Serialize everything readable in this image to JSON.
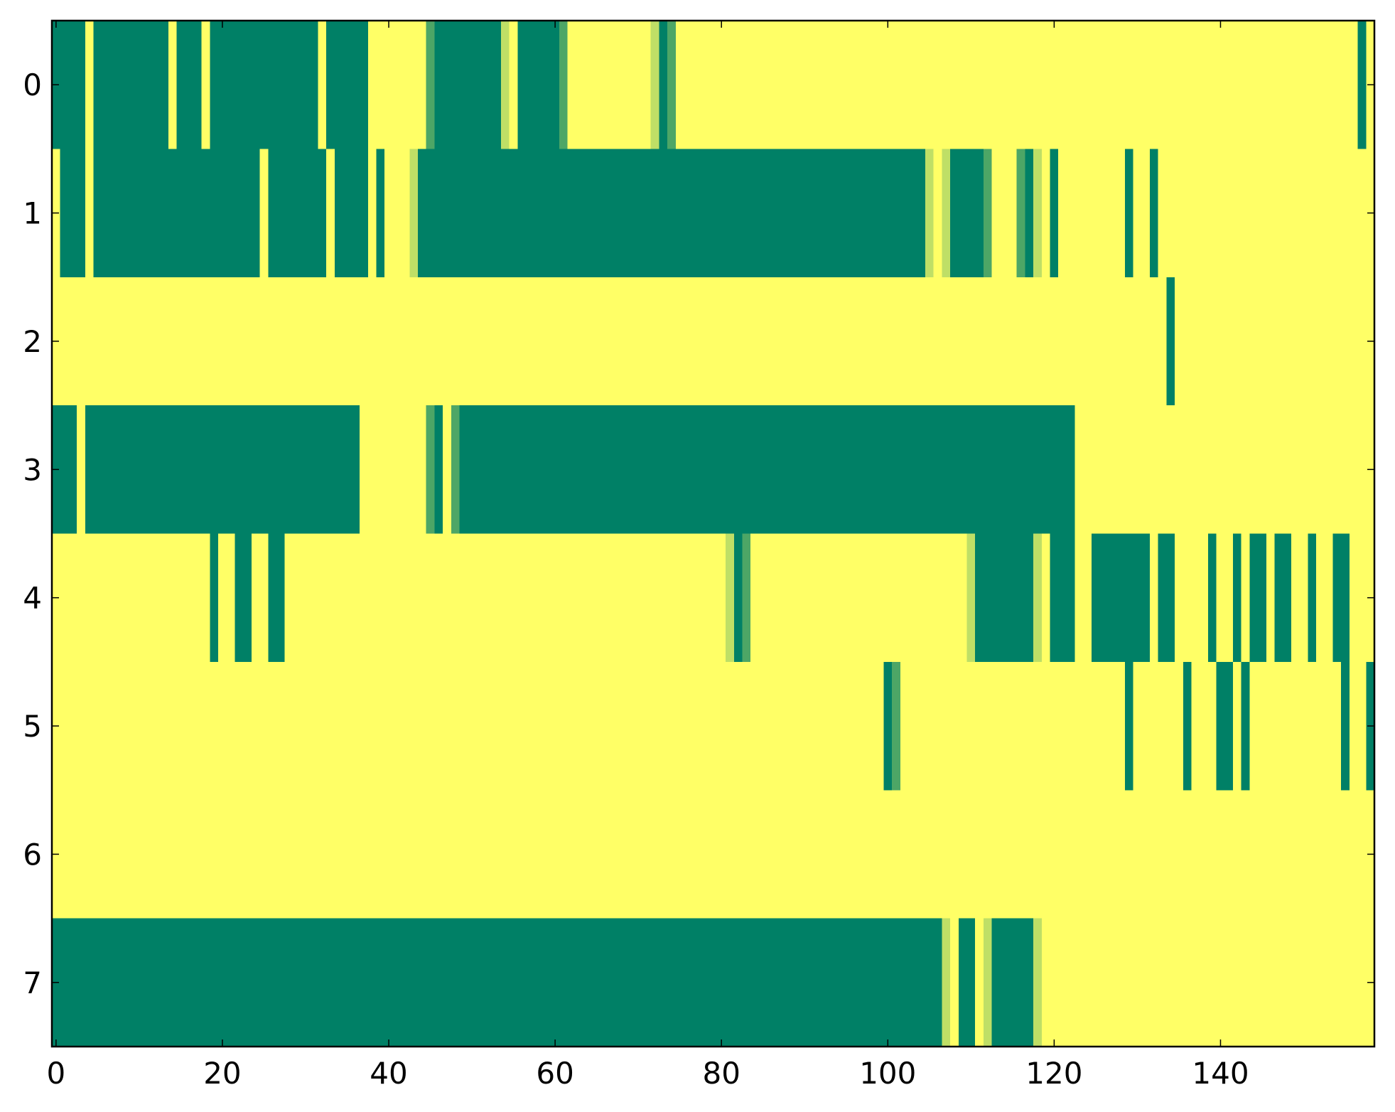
{
  "chart_data": {
    "type": "heatmap",
    "values": [
      [
        0,
        0,
        0,
        0,
        1,
        0,
        0,
        0,
        0,
        0,
        0,
        0,
        0,
        0,
        1,
        0,
        0,
        0,
        1,
        0,
        0,
        0,
        0,
        0,
        0,
        0,
        0,
        0,
        0,
        0,
        0,
        0,
        1,
        0,
        0,
        0,
        0,
        0,
        1,
        1,
        1,
        1,
        1,
        1,
        1,
        0.3,
        0,
        0,
        0,
        0,
        0,
        0,
        0,
        0,
        0.75,
        1,
        0,
        0,
        0,
        0,
        0,
        0.3,
        1,
        1,
        1,
        1,
        1,
        1,
        1,
        1,
        1,
        1,
        0.75,
        0,
        0.3,
        1,
        1,
        1,
        1,
        1,
        1,
        1,
        1,
        1,
        1,
        1,
        1,
        1,
        1,
        1,
        1,
        1,
        1,
        1,
        1,
        1,
        1,
        1,
        1,
        1,
        1,
        1,
        1,
        1,
        1,
        1,
        1,
        1,
        1,
        1,
        1,
        1,
        1,
        1,
        1,
        1,
        1,
        1,
        1,
        1,
        1,
        1,
        1,
        1,
        1,
        1,
        1,
        1,
        1,
        1,
        1,
        1,
        1,
        1,
        1,
        1,
        1,
        1,
        1,
        1,
        1,
        1,
        1,
        1,
        1,
        1,
        1,
        1,
        1,
        1,
        1,
        1,
        1,
        1,
        1,
        1,
        1,
        0,
        1
      ],
      [
        1,
        0,
        0,
        0,
        1,
        0,
        0,
        0,
        0,
        0,
        0,
        0,
        0,
        0,
        0,
        0,
        0,
        0,
        0,
        0,
        0,
        0,
        0,
        0,
        0,
        1,
        0,
        0,
        0,
        0,
        0,
        0,
        0,
        1,
        0,
        0,
        0,
        0,
        1,
        0,
        1,
        1,
        1,
        0.75,
        0,
        0,
        0,
        0,
        0,
        0,
        0,
        0,
        0,
        0,
        0,
        0,
        0,
        0,
        0,
        0,
        0,
        0,
        0,
        0,
        0,
        0,
        0,
        0,
        0,
        0,
        0,
        0,
        0,
        0,
        0,
        0,
        0,
        0,
        0,
        0,
        0,
        0,
        0,
        0,
        0,
        0,
        0,
        0,
        0,
        0,
        0,
        0,
        0,
        0,
        0,
        0,
        0,
        0,
        0,
        0,
        0,
        0,
        0,
        0,
        0,
        0.75,
        1,
        0.75,
        0,
        0,
        0,
        0,
        0.3,
        1,
        1,
        1,
        0.3,
        0,
        0.75,
        1,
        0,
        1,
        1,
        1,
        1,
        1,
        1,
        1,
        1,
        0,
        1,
        1,
        0,
        1,
        1,
        1,
        1,
        1,
        1,
        1,
        1,
        1,
        1,
        1,
        1,
        1,
        1,
        1,
        1,
        1,
        1,
        1,
        1,
        1,
        1,
        1,
        1,
        1,
        1
      ],
      [
        1,
        1,
        1,
        1,
        1,
        1,
        1,
        1,
        1,
        1,
        1,
        1,
        1,
        1,
        1,
        1,
        1,
        1,
        1,
        1,
        1,
        1,
        1,
        1,
        1,
        1,
        1,
        1,
        1,
        1,
        1,
        1,
        1,
        1,
        1,
        1,
        1,
        1,
        1,
        1,
        1,
        1,
        1,
        1,
        1,
        1,
        1,
        1,
        1,
        1,
        1,
        1,
        1,
        1,
        1,
        1,
        1,
        1,
        1,
        1,
        1,
        1,
        1,
        1,
        1,
        1,
        1,
        1,
        1,
        1,
        1,
        1,
        1,
        1,
        1,
        1,
        1,
        1,
        1,
        1,
        1,
        1,
        1,
        1,
        1,
        1,
        1,
        1,
        1,
        1,
        1,
        1,
        1,
        1,
        1,
        1,
        1,
        1,
        1,
        1,
        1,
        1,
        1,
        1,
        1,
        1,
        1,
        1,
        1,
        1,
        1,
        1,
        1,
        1,
        1,
        1,
        1,
        1,
        1,
        1,
        1,
        1,
        1,
        1,
        1,
        1,
        1,
        1,
        1,
        1,
        1,
        1,
        1,
        1,
        0,
        1,
        1,
        1,
        1,
        1,
        1,
        1,
        1,
        1,
        1,
        1,
        1,
        1,
        1,
        1,
        1,
        1,
        1,
        1,
        1,
        1,
        1,
        1,
        1
      ],
      [
        0,
        0,
        0,
        1,
        0,
        0,
        0,
        0,
        0,
        0,
        0,
        0,
        0,
        0,
        0,
        0,
        0,
        0,
        0,
        0,
        0,
        0,
        0,
        0,
        0,
        0,
        0,
        0,
        0,
        0,
        0,
        0,
        0,
        0,
        0,
        0,
        0,
        1,
        1,
        1,
        1,
        1,
        1,
        1,
        1,
        0.3,
        0,
        1,
        0.3,
        0,
        0,
        0,
        0,
        0,
        0,
        0,
        0,
        0,
        0,
        0,
        0,
        0,
        0,
        0,
        0,
        0,
        0,
        0,
        0,
        0,
        0,
        0,
        0,
        0,
        0,
        0,
        0,
        0,
        0,
        0,
        0,
        0,
        0,
        0,
        0,
        0,
        0,
        0,
        0,
        0,
        0,
        0,
        0,
        0,
        0,
        0,
        0,
        0,
        0,
        0,
        0,
        0,
        0,
        0,
        0,
        0,
        0,
        0,
        0,
        0,
        0,
        0,
        0,
        0,
        0,
        0,
        0,
        0,
        0,
        0,
        0,
        0,
        0,
        1,
        1,
        1,
        1,
        1,
        1,
        1,
        1,
        1,
        1,
        1,
        1,
        1,
        1,
        1,
        1,
        1,
        1,
        1,
        1,
        1,
        1,
        1,
        1,
        1,
        1,
        1,
        1,
        1,
        1,
        1,
        1,
        1,
        1,
        1,
        1
      ],
      [
        1,
        1,
        1,
        1,
        1,
        1,
        1,
        1,
        1,
        1,
        1,
        1,
        1,
        1,
        1,
        1,
        1,
        1,
        1,
        0,
        1,
        1,
        0,
        0,
        1,
        1,
        0,
        0,
        1,
        1,
        1,
        1,
        1,
        1,
        1,
        1,
        1,
        1,
        1,
        1,
        1,
        1,
        1,
        1,
        1,
        1,
        1,
        1,
        1,
        1,
        1,
        1,
        1,
        1,
        1,
        1,
        1,
        1,
        1,
        1,
        1,
        1,
        1,
        1,
        1,
        1,
        1,
        1,
        1,
        1,
        1,
        1,
        1,
        1,
        1,
        1,
        1,
        1,
        1,
        1,
        1,
        0.75,
        0,
        0.3,
        1,
        1,
        1,
        1,
        1,
        1,
        1,
        1,
        1,
        1,
        1,
        1,
        1,
        1,
        1,
        1,
        1,
        1,
        1,
        1,
        1,
        1,
        1,
        1,
        1,
        1,
        0.75,
        0,
        0,
        0,
        0,
        0,
        0,
        0,
        0.75,
        1,
        0,
        0,
        0,
        1,
        1,
        0,
        0,
        0,
        0,
        0,
        0,
        0,
        1,
        0,
        0,
        1,
        1,
        1,
        1,
        0,
        1,
        1,
        0,
        1,
        0,
        0,
        1,
        0,
        0,
        1,
        1,
        0,
        1,
        1,
        0,
        0,
        1,
        1,
        1
      ],
      [
        1,
        1,
        1,
        1,
        1,
        1,
        1,
        1,
        1,
        1,
        1,
        1,
        1,
        1,
        1,
        1,
        1,
        1,
        1,
        1,
        1,
        1,
        1,
        1,
        1,
        1,
        1,
        1,
        1,
        1,
        1,
        1,
        1,
        1,
        1,
        1,
        1,
        1,
        1,
        1,
        1,
        1,
        1,
        1,
        1,
        1,
        1,
        1,
        1,
        1,
        1,
        1,
        1,
        1,
        1,
        1,
        1,
        1,
        1,
        1,
        1,
        1,
        1,
        1,
        1,
        1,
        1,
        1,
        1,
        1,
        1,
        1,
        1,
        1,
        1,
        1,
        1,
        1,
        1,
        1,
        1,
        1,
        1,
        1,
        1,
        1,
        1,
        1,
        1,
        1,
        1,
        1,
        1,
        1,
        1,
        1,
        1,
        1,
        1,
        1,
        0,
        0.3,
        1,
        1,
        1,
        1,
        1,
        1,
        1,
        1,
        1,
        1,
        1,
        1,
        1,
        1,
        1,
        1,
        1,
        1,
        1,
        1,
        1,
        1,
        1,
        1,
        1,
        1,
        1,
        0,
        1,
        1,
        1,
        1,
        1,
        1,
        0,
        1,
        1,
        1,
        0,
        0,
        1,
        0,
        1,
        1,
        1,
        1,
        1,
        1,
        1,
        1,
        1,
        1,
        1,
        0,
        1,
        1,
        0
      ],
      [
        1,
        1,
        1,
        1,
        1,
        1,
        1,
        1,
        1,
        1,
        1,
        1,
        1,
        1,
        1,
        1,
        1,
        1,
        1,
        1,
        1,
        1,
        1,
        1,
        1,
        1,
        1,
        1,
        1,
        1,
        1,
        1,
        1,
        1,
        1,
        1,
        1,
        1,
        1,
        1,
        1,
        1,
        1,
        1,
        1,
        1,
        1,
        1,
        1,
        1,
        1,
        1,
        1,
        1,
        1,
        1,
        1,
        1,
        1,
        1,
        1,
        1,
        1,
        1,
        1,
        1,
        1,
        1,
        1,
        1,
        1,
        1,
        1,
        1,
        1,
        1,
        1,
        1,
        1,
        1,
        1,
        1,
        1,
        1,
        1,
        1,
        1,
        1,
        1,
        1,
        1,
        1,
        1,
        1,
        1,
        1,
        1,
        1,
        1,
        1,
        1,
        1,
        1,
        1,
        1,
        1,
        1,
        1,
        1,
        1,
        1,
        1,
        1,
        1,
        1,
        1,
        1,
        1,
        1,
        1,
        1,
        1,
        1,
        1,
        1,
        1,
        1,
        1,
        1,
        1,
        1,
        1,
        1,
        1,
        1,
        1,
        1,
        1,
        1,
        1,
        1,
        1,
        1,
        1,
        1,
        1,
        1,
        1,
        1,
        1,
        1,
        1,
        1,
        1,
        1,
        1,
        1,
        1,
        1
      ],
      [
        0,
        0,
        0,
        0,
        0,
        0,
        0,
        0,
        0,
        0,
        0,
        0,
        0,
        0,
        0,
        0,
        0,
        0,
        0,
        0,
        0,
        0,
        0,
        0,
        0,
        0,
        0,
        0,
        0,
        0,
        0,
        0,
        0,
        0,
        0,
        0,
        0,
        0,
        0,
        0,
        0,
        0,
        0,
        0,
        0,
        0,
        0,
        0,
        0,
        0,
        0,
        0,
        0,
        0,
        0,
        0,
        0,
        0,
        0,
        0,
        0,
        0,
        0,
        0,
        0,
        0,
        0,
        0,
        0,
        0,
        0,
        0,
        0,
        0,
        0,
        0,
        0,
        0,
        0,
        0,
        0,
        0,
        0,
        0,
        0,
        0,
        0,
        0,
        0,
        0,
        0,
        0,
        0,
        0,
        0,
        0,
        0,
        0,
        0,
        0,
        0,
        0,
        0,
        0,
        0,
        0,
        0,
        0.75,
        1,
        0,
        0,
        1,
        0.75,
        0,
        0,
        0,
        0,
        0,
        0.75,
        1,
        1,
        1,
        1,
        1,
        1,
        1,
        1,
        1,
        1,
        1,
        1,
        1,
        1,
        1,
        1,
        1,
        1,
        1,
        1,
        1,
        1,
        1,
        1,
        1,
        1,
        1,
        1,
        1,
        1,
        1,
        1,
        1,
        1,
        1,
        1,
        1,
        1,
        1,
        1
      ]
    ],
    "clim": [
      0,
      1
    ],
    "colorscale": [
      "#008066",
      "#ffff66"
    ],
    "xlim": [
      -0.5,
      158.5
    ],
    "ylim": [
      7.5,
      -0.5
    ],
    "xticks": [
      0,
      20,
      40,
      60,
      80,
      100,
      120,
      140
    ],
    "yticks": [
      0,
      1,
      2,
      3,
      4,
      5,
      6,
      7
    ]
  }
}
